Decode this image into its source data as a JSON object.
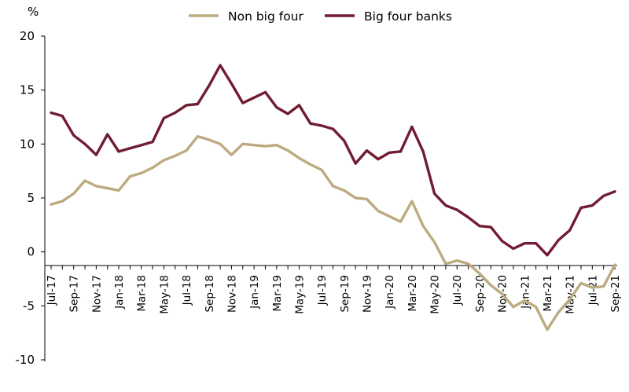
{
  "chart_data": {
    "type": "line",
    "ylabel": "%",
    "ylim": [
      -10,
      20
    ],
    "yticks": [
      "20",
      "15",
      "10",
      "5",
      "0",
      "-5",
      "-10"
    ],
    "grid": false,
    "legend_position": "top",
    "x": [
      "Jul-17",
      "Aug-17",
      "Sep-17",
      "Oct-17",
      "Nov-17",
      "Dec-17",
      "Jan-18",
      "Feb-18",
      "Mar-18",
      "Apr-18",
      "May-18",
      "Jun-18",
      "Jul-18",
      "Aug-18",
      "Sep-18",
      "Oct-18",
      "Nov-18",
      "Dec-18",
      "Jan-19",
      "Feb-19",
      "Mar-19",
      "Apr-19",
      "May-19",
      "Jun-19",
      "Jul-19",
      "Aug-19",
      "Sep-19",
      "Oct-19",
      "Nov-19",
      "Dec-19",
      "Jan-20",
      "Feb-20",
      "Mar-20",
      "Apr-20",
      "May-20",
      "Jun-20",
      "Jul-20",
      "Aug-20",
      "Sep-20",
      "Oct-20",
      "Nov-20",
      "Dec-20",
      "Jan-21",
      "Feb-21",
      "Mar-21",
      "Apr-21",
      "May-21",
      "Jun-21",
      "Jul-21",
      "Aug-21",
      "Sep-21"
    ],
    "xtick_labels": [
      "Jul-17",
      "Sep-17",
      "Nov-17",
      "Jan-18",
      "Mar-18",
      "May-18",
      "Jul-18",
      "Sep-18",
      "Nov-18",
      "Jan-19",
      "Mar-19",
      "May-19",
      "Jul-19",
      "Sep-19",
      "Nov-19",
      "Jan-20",
      "Mar-20",
      "May-20",
      "Jul-20",
      "Sep-20",
      "Nov-20",
      "Jan-21",
      "Mar-21",
      "May-21",
      "Jul-21",
      "Sep-21"
    ],
    "series": [
      {
        "name": "Non big four",
        "color": "#BCAB7F",
        "values": [
          4.4,
          4.7,
          5.4,
          6.6,
          6.1,
          5.9,
          5.7,
          7.0,
          7.3,
          7.8,
          8.5,
          8.9,
          9.4,
          10.7,
          10.4,
          10.0,
          9.0,
          10.0,
          9.9,
          9.8,
          9.9,
          9.4,
          8.7,
          8.1,
          7.6,
          6.1,
          5.7,
          5.0,
          4.9,
          3.8,
          3.3,
          2.8,
          4.7,
          2.4,
          0.9,
          -1.1,
          -0.8,
          -1.1,
          -2.0,
          -3.1,
          -3.9,
          -5.1,
          -4.5,
          -5.1,
          -7.2,
          -5.6,
          -4.4,
          -2.9,
          -3.3,
          -3.2,
          -1.2
        ]
      },
      {
        "name": "Big four banks",
        "color": "#701C32",
        "values": [
          12.9,
          12.6,
          10.8,
          10.0,
          9.0,
          10.9,
          9.3,
          9.6,
          9.9,
          10.2,
          12.4,
          12.9,
          13.6,
          13.7,
          15.4,
          17.3,
          15.6,
          13.8,
          14.3,
          14.8,
          13.4,
          12.8,
          13.6,
          11.9,
          11.7,
          11.4,
          10.3,
          8.2,
          9.4,
          8.6,
          9.2,
          9.3,
          11.6,
          9.3,
          5.4,
          4.3,
          3.9,
          3.2,
          2.4,
          2.3,
          1.0,
          0.3,
          0.8,
          0.8,
          -0.3,
          1.1,
          2.0,
          4.1,
          4.3,
          5.2,
          5.6
        ]
      }
    ]
  }
}
